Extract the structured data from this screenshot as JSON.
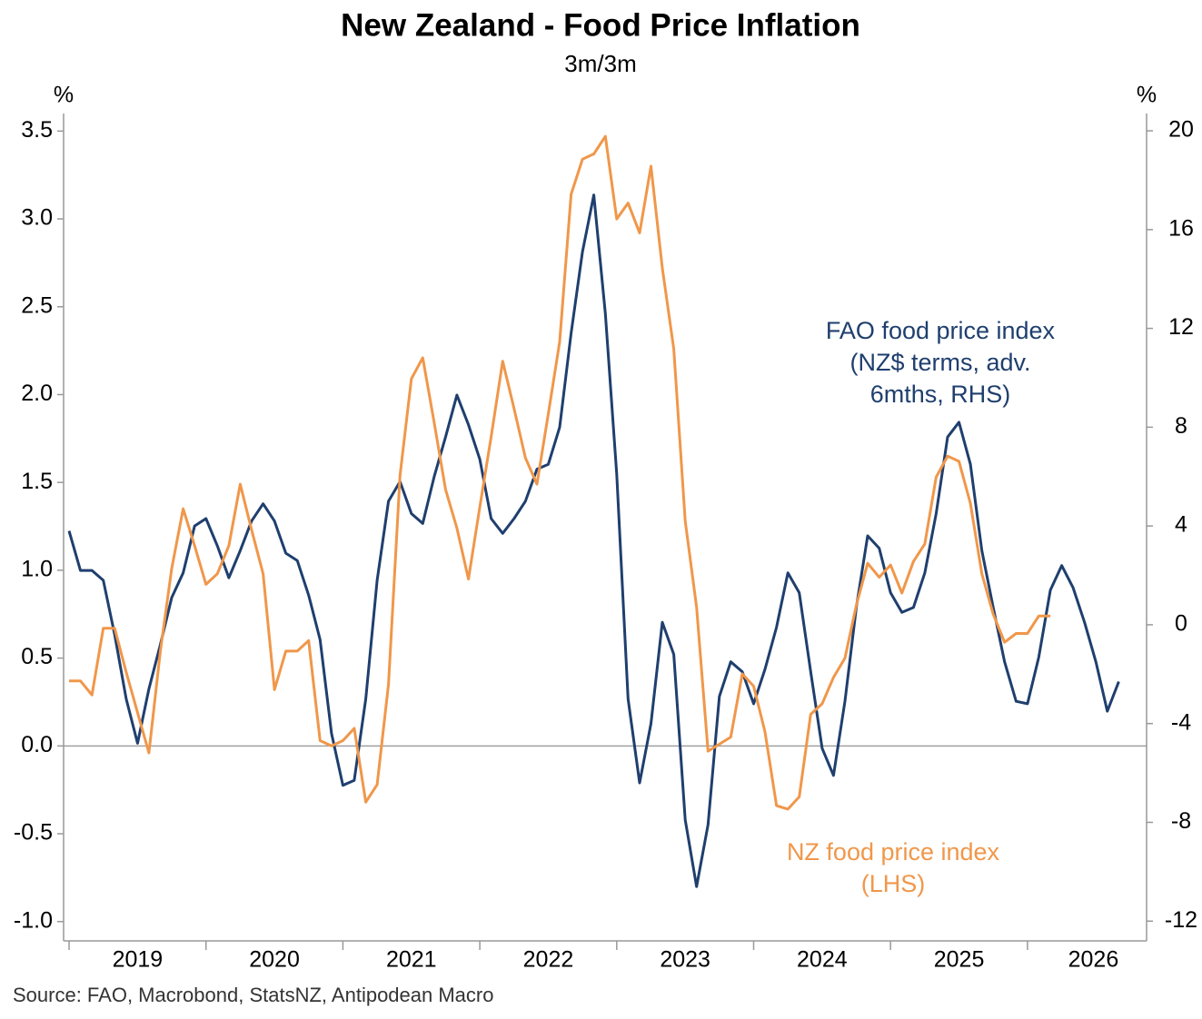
{
  "chart_data": {
    "type": "line",
    "title": "New Zealand - Food Price Inflation",
    "subtitle": "3m/3m",
    "ylabel": "%",
    "y2label": "%",
    "source": "Source: FAO, Macrobond, StatsNZ, Antipodean Macro",
    "annotations": [
      {
        "lines": [
          "FAO food price index",
          "(NZ$ terms, adv.",
          "6mths, RHS)"
        ],
        "color": "#1f3f6e"
      },
      {
        "lines": [
          "NZ food price index",
          "(LHS)"
        ],
        "color": "#f0974a"
      }
    ],
    "x": [
      2019,
      2019.083,
      2019.167,
      2019.25,
      2019.333,
      2019.417,
      2019.5,
      2019.583,
      2019.667,
      2019.75,
      2019.833,
      2019.917,
      2020,
      2020.083,
      2020.167,
      2020.25,
      2020.333,
      2020.417,
      2020.5,
      2020.583,
      2020.667,
      2020.75,
      2020.833,
      2020.917,
      2021,
      2021.083,
      2021.167,
      2021.25,
      2021.333,
      2021.417,
      2021.5,
      2021.583,
      2021.667,
      2021.75,
      2021.833,
      2021.917,
      2022,
      2022.083,
      2022.167,
      2022.25,
      2022.333,
      2022.417,
      2022.5,
      2022.583,
      2022.667,
      2022.75,
      2022.833,
      2022.917,
      2023,
      2023.083,
      2023.167,
      2023.25,
      2023.333,
      2023.417,
      2023.5,
      2023.583,
      2023.667,
      2023.75,
      2023.833,
      2023.917,
      2024,
      2024.083,
      2024.167,
      2024.25,
      2024.333,
      2024.417,
      2024.5,
      2024.583,
      2024.667,
      2024.75,
      2024.833,
      2024.917,
      2025,
      2025.083,
      2025.167,
      2025.25,
      2025.333,
      2025.417,
      2025.5,
      2025.583,
      2025.667,
      2025.75,
      2025.833,
      2025.917,
      2026,
      2026.083,
      2026.167,
      2026.25,
      2026.333,
      2026.417,
      2026.5,
      2026.583,
      2026.667
    ],
    "series": [
      {
        "name": "FAO food price index (NZ$ terms, adv. 6mths, RHS)",
        "color": "#1f3f6e",
        "axis": "y2",
        "values": [
          3.8,
          2.2,
          2.2,
          1.8,
          -0.4,
          -3.0,
          -4.8,
          -2.6,
          -0.8,
          1.1,
          2.1,
          4.0,
          4.3,
          3.2,
          1.9,
          3.0,
          4.2,
          4.9,
          4.2,
          2.9,
          2.6,
          1.2,
          -0.6,
          -4.4,
          -6.5,
          -6.3,
          -3.0,
          1.8,
          5.0,
          5.8,
          4.5,
          4.1,
          6.0,
          7.6,
          9.3,
          8.1,
          6.7,
          4.3,
          3.7,
          4.3,
          5.0,
          6.3,
          6.5,
          8.0,
          11.8,
          15.1,
          17.4,
          12.6,
          6.1,
          -3.0,
          -6.4,
          -4.0,
          0.1,
          -1.2,
          -7.9,
          -10.6,
          -8.1,
          -2.9,
          -1.5,
          -1.9,
          -3.2,
          -1.8,
          -0.1,
          2.1,
          1.3,
          -1.9,
          -5.0,
          -6.1,
          -3.1,
          0.7,
          3.6,
          3.1,
          1.3,
          0.5,
          0.7,
          2.1,
          4.5,
          7.6,
          8.2,
          6.5,
          3.0,
          0.7,
          -1.5,
          -3.1,
          -3.2,
          -1.3,
          1.4,
          2.4,
          1.5,
          0.1,
          -1.5,
          -3.5,
          -2.3
        ]
      },
      {
        "name": "NZ food price index (LHS)",
        "color": "#f0974a",
        "values": [
          0.37,
          0.37,
          0.29,
          0.67,
          0.67,
          0.42,
          0.19,
          -0.04,
          0.54,
          1.01,
          1.35,
          1.14,
          0.92,
          0.98,
          1.14,
          1.49,
          1.23,
          0.98,
          0.32,
          0.54,
          0.54,
          0.6,
          0.03,
          0.0,
          0.03,
          0.1,
          -0.32,
          -0.22,
          0.35,
          1.54,
          2.09,
          2.21,
          1.84,
          1.46,
          1.24,
          0.95,
          1.36,
          1.76,
          2.19,
          1.92,
          1.64,
          1.49,
          1.89,
          2.3,
          3.14,
          3.34,
          3.37,
          3.47,
          3.0,
          3.09,
          2.92,
          3.3,
          2.72,
          2.26,
          1.28,
          0.79,
          -0.03,
          0.01,
          0.05,
          0.41,
          0.34,
          0.08,
          -0.34,
          -0.36,
          -0.29,
          0.18,
          0.24,
          0.39,
          0.5,
          0.8,
          1.04,
          0.96,
          1.03,
          0.87,
          1.05,
          1.15,
          1.53,
          1.65,
          1.62,
          1.38,
          0.98,
          0.75,
          0.59,
          0.64,
          0.64,
          0.74,
          0.74,
          null,
          null,
          null,
          null,
          null,
          null
        ]
      }
    ],
    "xlim": [
      2018.96,
      2026.87
    ],
    "xticks": [
      {
        "value": 2019,
        "label": "2019"
      },
      {
        "value": 2020,
        "label": "2020"
      },
      {
        "value": 2021,
        "label": "2021"
      },
      {
        "value": 2022,
        "label": "2022"
      },
      {
        "value": 2023,
        "label": "2023"
      },
      {
        "value": 2024,
        "label": "2024"
      },
      {
        "value": 2025,
        "label": "2025"
      },
      {
        "value": 2026,
        "label": "2026"
      }
    ],
    "ylim": [
      -1.11,
      3.6
    ],
    "yticks": [
      {
        "value": 3.5,
        "label": "3.5"
      },
      {
        "value": 3,
        "label": "3.0"
      },
      {
        "value": 2.5,
        "label": "2.5"
      },
      {
        "value": 2,
        "label": "2.0"
      },
      {
        "value": 1.5,
        "label": "1.5"
      },
      {
        "value": 1,
        "label": "1.0"
      },
      {
        "value": 0.5,
        "label": "0.5"
      },
      {
        "value": 0,
        "label": "0.0"
      },
      {
        "value": -0.5,
        "label": "-0.5"
      },
      {
        "value": -1,
        "label": "-1.0"
      }
    ],
    "y2lim": [
      -12.8,
      20.7
    ],
    "y2ticks": [
      20,
      16,
      12,
      8,
      4,
      0,
      -4,
      -8,
      -12
    ],
    "zero_line": true
  }
}
